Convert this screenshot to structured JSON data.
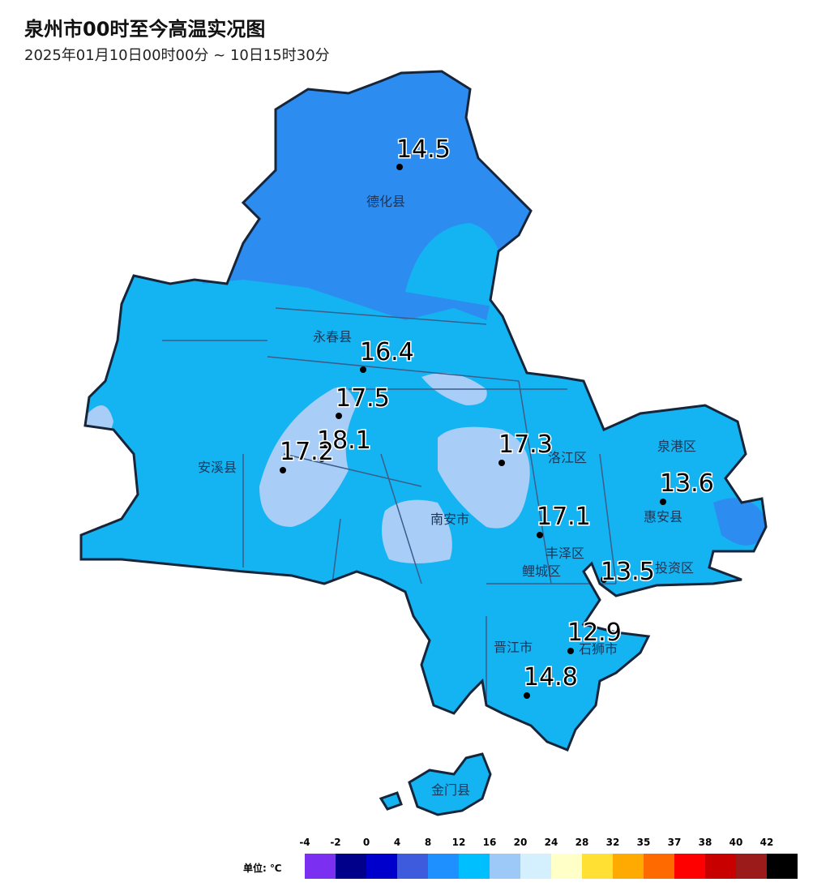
{
  "header": {
    "title": "泉州市00时至今高温实况图",
    "subtitle": "2025年01月10日00时00分 ~ 10日15时30分"
  },
  "districts": [
    "德化县",
    "永春县",
    "安溪县",
    "南安市",
    "洛江区",
    "泉港区",
    "惠安县",
    "丰泽区",
    "鲤城区",
    "投资区",
    "晋江市",
    "石狮市",
    "金门县"
  ],
  "stations": [
    14.5,
    16.4,
    17.5,
    18.1,
    17.2,
    17.3,
    13.6,
    17.1,
    13.5,
    12.9,
    14.8
  ],
  "legend": {
    "unit": "单位: ℃",
    "ticks": [
      -4,
      -2,
      0,
      4,
      8,
      12,
      16,
      20,
      24,
      28,
      32,
      35,
      37,
      38,
      40,
      42
    ],
    "colors": [
      "#7b2ff0",
      "#00008b",
      "#0000cd",
      "#3d5bdc",
      "#1e90ff",
      "#00bfff",
      "#9cc9f7",
      "#d4f0ff",
      "#ffffc8",
      "#ffe033",
      "#ffaa00",
      "#ff6a00",
      "#ff0000",
      "#c80000",
      "#9b1b1b",
      "#000000"
    ]
  }
}
